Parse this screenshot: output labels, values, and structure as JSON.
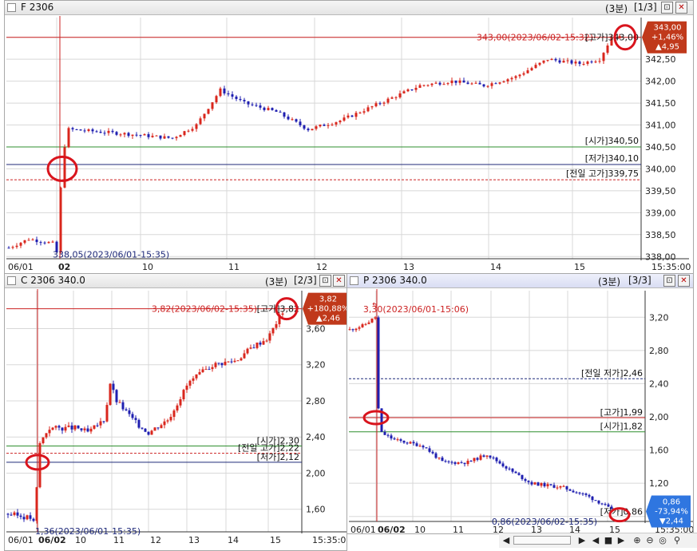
{
  "colors": {
    "up": "#d9261c",
    "down": "#1f1fb0",
    "level_red": "#cc2222",
    "level_green": "#2f8f2f",
    "level_navy": "#1f2a7a",
    "box_up": "#c0391b",
    "box_down": "#2f76e0",
    "annot": "#d9141d"
  },
  "main": {
    "title": "F 2306",
    "interval": "(3분)",
    "page": "[1/3]",
    "x_labels": [
      "06/01",
      "02",
      "10",
      "11",
      "12",
      "13",
      "14",
      "15",
      "15:35:00"
    ],
    "y_ticks": [
      "343,00",
      "342,50",
      "342,00",
      "341,50",
      "341,00",
      "340,50",
      "340,00",
      "339,50",
      "339,00",
      "338,50",
      "338,00"
    ],
    "ylim": [
      337.95,
      343.45
    ],
    "high_note": "343,00(2023/06/02-15:32)",
    "high_tag": "[고가]343,00",
    "low_note": "338,05(2023/06/01-15:35)",
    "levels": [
      {
        "label": "[시가]340,50",
        "value": 340.5,
        "color": "green"
      },
      {
        "label": "[저가]340,10",
        "value": 340.1,
        "color": "navy"
      },
      {
        "label": "[전일 고가]339,75",
        "value": 339.75,
        "color": "red-dash"
      }
    ],
    "price_box": {
      "price": "343,00",
      "pct": "+1,46%",
      "chg": "▲4,95"
    }
  },
  "call": {
    "title": "C 2306 340.0",
    "interval": "(3분)",
    "page": "[2/3]",
    "x_labels": [
      "06/01",
      "06/02",
      "10",
      "11",
      "12",
      "13",
      "14",
      "15",
      "15:35:00"
    ],
    "y_ticks": [
      "3,60",
      "3,20",
      "2,80",
      "2,40",
      "2,00",
      "1,60"
    ],
    "ylim": [
      1.35,
      4.02
    ],
    "high_note": "3,82(2023/06/02-15:35)",
    "high_tag": "[고가]3,82",
    "low_note": "1,36(2023/06/01-15:35)",
    "levels": [
      {
        "label": "[시가]2,30",
        "value": 2.3,
        "color": "green"
      },
      {
        "label": "[전일 고가]2,22",
        "value": 2.22,
        "color": "red-dash"
      },
      {
        "label": "[저가]2,12",
        "value": 2.12,
        "color": "navy"
      }
    ],
    "price_box": {
      "price": "3,82",
      "pct": "+180,88%",
      "chg": "▲2,46"
    }
  },
  "put": {
    "title": "P 2306 340.0",
    "interval": "(3분)",
    "page": "[3/3]",
    "x_labels": [
      "06/01",
      "06/02",
      "10",
      "11",
      "12",
      "13",
      "14",
      "15",
      "15:35:00"
    ],
    "y_ticks": [
      "3,20",
      "2,80",
      "2,40",
      "2,00",
      "1,60",
      "1,20",
      "0,80"
    ],
    "ylim": [
      0.74,
      3.52
    ],
    "high_note": "3,30(2023/06/01-15:06)",
    "low_note": "0,86(2023/06/02-15:35)",
    "low_tag": "[저가]0,86",
    "levels": [
      {
        "label": "[전일 저가]2,46",
        "value": 2.46,
        "color": "navy-dash"
      },
      {
        "label": "[고가]1,99",
        "value": 1.99,
        "color": "red"
      },
      {
        "label": "[시가]1,82",
        "value": 1.82,
        "color": "green"
      }
    ],
    "price_box": {
      "price": "0,86",
      "pct": "-73,94%",
      "chg": "▼2,44"
    }
  },
  "scroll_buttons": [
    "◀",
    "|",
    "◀",
    "■",
    "▶",
    "⊕",
    "⊖",
    "⊕",
    "🔍"
  ]
}
